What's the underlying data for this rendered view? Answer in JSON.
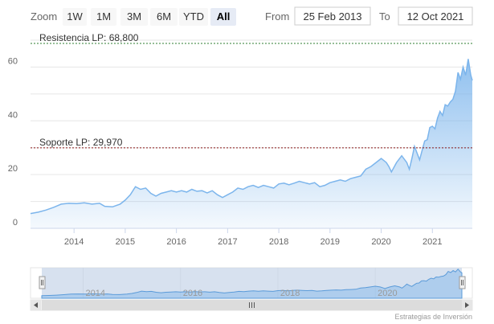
{
  "toolbar": {
    "zoom_label": "Zoom",
    "buttons": [
      "1W",
      "1M",
      "3M",
      "6M",
      "YTD",
      "All"
    ],
    "selected": "All",
    "from_label": "From",
    "from_value": "25 Feb 2013",
    "to_label": "To",
    "to_value": "12 Oct 2021"
  },
  "colors": {
    "series": "#7cb5ec",
    "resistance": "#2e7d32",
    "support": "#8b1a1a",
    "navigator_mask": "#c9d7ea"
  },
  "credits": "Estrategias de Inversión",
  "chart_data": {
    "type": "area",
    "title": "",
    "xlabel": "",
    "ylabel": "",
    "ylim": [
      0,
      70
    ],
    "xlim": [
      2013.15,
      2021.78
    ],
    "y_ticks": [
      0,
      20,
      40,
      60
    ],
    "x_ticks": [
      "2014",
      "2015",
      "2016",
      "2017",
      "2018",
      "2019",
      "2020",
      "2021"
    ],
    "grid": true,
    "plot_lines": [
      {
        "label": "Resistencia LP: 68,800",
        "value": 68.8
      },
      {
        "label": "Soporte LP: 29,970",
        "value": 29.97
      }
    ],
    "series": [
      {
        "x": [
          2013.15,
          2013.3,
          2013.45,
          2013.6,
          2013.75,
          2013.9,
          2014.05,
          2014.2,
          2014.35,
          2014.5,
          2014.6,
          2014.75,
          2014.9,
          2015.0,
          2015.1,
          2015.2,
          2015.3,
          2015.4,
          2015.5,
          2015.6,
          2015.7,
          2015.8,
          2015.9,
          2016.0,
          2016.1,
          2016.2,
          2016.3,
          2016.4,
          2016.5,
          2016.6,
          2016.7,
          2016.8,
          2016.9,
          2017.0,
          2017.1,
          2017.2,
          2017.3,
          2017.4,
          2017.5,
          2017.6,
          2017.7,
          2017.8,
          2017.9,
          2018.0,
          2018.1,
          2018.2,
          2018.3,
          2018.4,
          2018.5,
          2018.6,
          2018.7,
          2018.8,
          2018.9,
          2019.0,
          2019.1,
          2019.2,
          2019.3,
          2019.4,
          2019.5,
          2019.6,
          2019.7,
          2019.8,
          2019.9,
          2020.0,
          2020.1,
          2020.15,
          2020.2,
          2020.3,
          2020.4,
          2020.5,
          2020.55,
          2020.6,
          2020.65,
          2020.7,
          2020.75,
          2020.8,
          2020.85,
          2020.9,
          2020.95,
          2021.0,
          2021.05,
          2021.1,
          2021.15,
          2021.2,
          2021.25,
          2021.3,
          2021.35,
          2021.4,
          2021.45,
          2021.5,
          2021.55,
          2021.6,
          2021.65,
          2021.7,
          2021.75,
          2021.78
        ],
        "y": [
          5.5,
          6.0,
          6.8,
          7.8,
          9.0,
          9.3,
          9.2,
          9.5,
          9.0,
          9.3,
          8.2,
          8.0,
          9.0,
          10.5,
          12.5,
          15.5,
          14.5,
          15.0,
          13.0,
          12.0,
          13.0,
          13.5,
          14.0,
          13.5,
          14.0,
          13.5,
          14.5,
          13.8,
          14.0,
          13.2,
          14.0,
          12.5,
          11.5,
          12.5,
          13.5,
          15.0,
          14.5,
          15.5,
          16.0,
          15.2,
          16.0,
          15.5,
          15.0,
          16.5,
          16.8,
          16.2,
          16.8,
          17.5,
          17.0,
          16.5,
          17.0,
          15.5,
          16.0,
          17.0,
          17.5,
          18.0,
          17.5,
          18.5,
          19.0,
          19.5,
          22.0,
          23.0,
          24.5,
          26.0,
          24.5,
          23.0,
          21.0,
          24.5,
          27.0,
          24.5,
          22.0,
          26.0,
          30.5,
          28.0,
          25.5,
          29.0,
          32.5,
          33.0,
          37.5,
          38.0,
          37.0,
          41.0,
          43.5,
          42.0,
          46.0,
          45.5,
          47.0,
          48.0,
          51.0,
          58.0,
          55.5,
          60.0,
          57.0,
          63.0,
          57.0,
          55.0
        ]
      }
    ]
  }
}
